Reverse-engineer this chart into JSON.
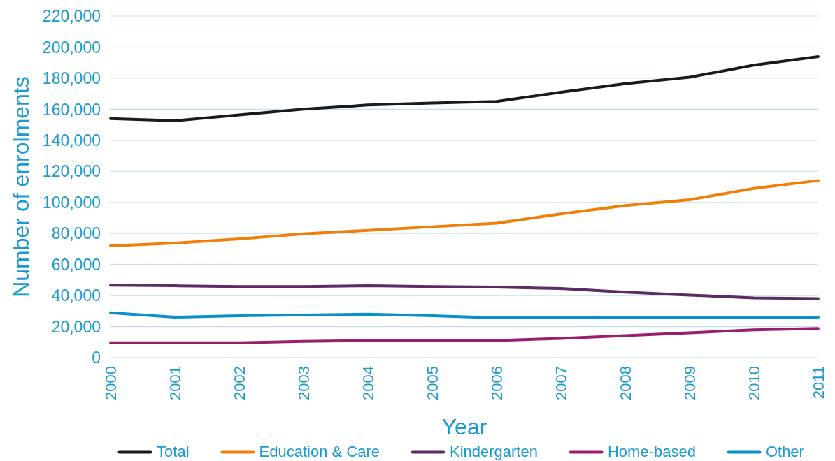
{
  "chart_data": {
    "type": "line",
    "xlabel": "Year",
    "ylabel": "Number of enrolments",
    "categories": [
      "2000",
      "2001",
      "2002",
      "2003",
      "2004",
      "2005",
      "2006",
      "2007",
      "2008",
      "2009",
      "2010",
      "2011"
    ],
    "series": [
      {
        "name": "Total",
        "color": "#1a1a1a",
        "values": [
          154000,
          152600,
          156300,
          160000,
          162700,
          164000,
          165000,
          171000,
          176500,
          180600,
          188400,
          193900
        ]
      },
      {
        "name": "Education & Care",
        "color": "#f07f09",
        "values": [
          72000,
          73800,
          76500,
          79700,
          82000,
          84300,
          86600,
          92600,
          98000,
          101700,
          109000,
          114100
        ]
      },
      {
        "name": "Kindergarten",
        "color": "#5c2a64",
        "values": [
          46700,
          46300,
          45800,
          45800,
          46300,
          45800,
          45400,
          44500,
          42200,
          40300,
          38500,
          38000
        ]
      },
      {
        "name": "Home-based",
        "color": "#9b1e6e",
        "values": [
          9600,
          9600,
          9600,
          10500,
          11000,
          11000,
          11000,
          12400,
          14200,
          16000,
          17900,
          18800
        ]
      },
      {
        "name": "Other",
        "color": "#0a8fc8",
        "values": [
          28900,
          26100,
          27000,
          27500,
          28000,
          27000,
          25700,
          25700,
          25700,
          25700,
          26100,
          26100
        ]
      }
    ],
    "ylim": [
      0,
      220000
    ],
    "yticks": [
      0,
      {
        "value": 20000,
        "label": "20,000"
      },
      {
        "value": 40000,
        "label": "40,000"
      },
      {
        "value": 60000,
        "label": "60,000"
      },
      {
        "value": 80000,
        "label": "80,000"
      },
      {
        "value": 100000,
        "label": "100,000"
      },
      {
        "value": 120000,
        "label": "120,000"
      },
      {
        "value": 140000,
        "label": "140,000"
      },
      {
        "value": 160000,
        "label": "160,000"
      },
      {
        "value": 180000,
        "label": "180,000"
      },
      {
        "value": 200000,
        "label": "200,000"
      },
      {
        "value": 220000,
        "label": "220,000"
      }
    ],
    "grid": "y",
    "legend": "bottom",
    "marker": "none"
  }
}
